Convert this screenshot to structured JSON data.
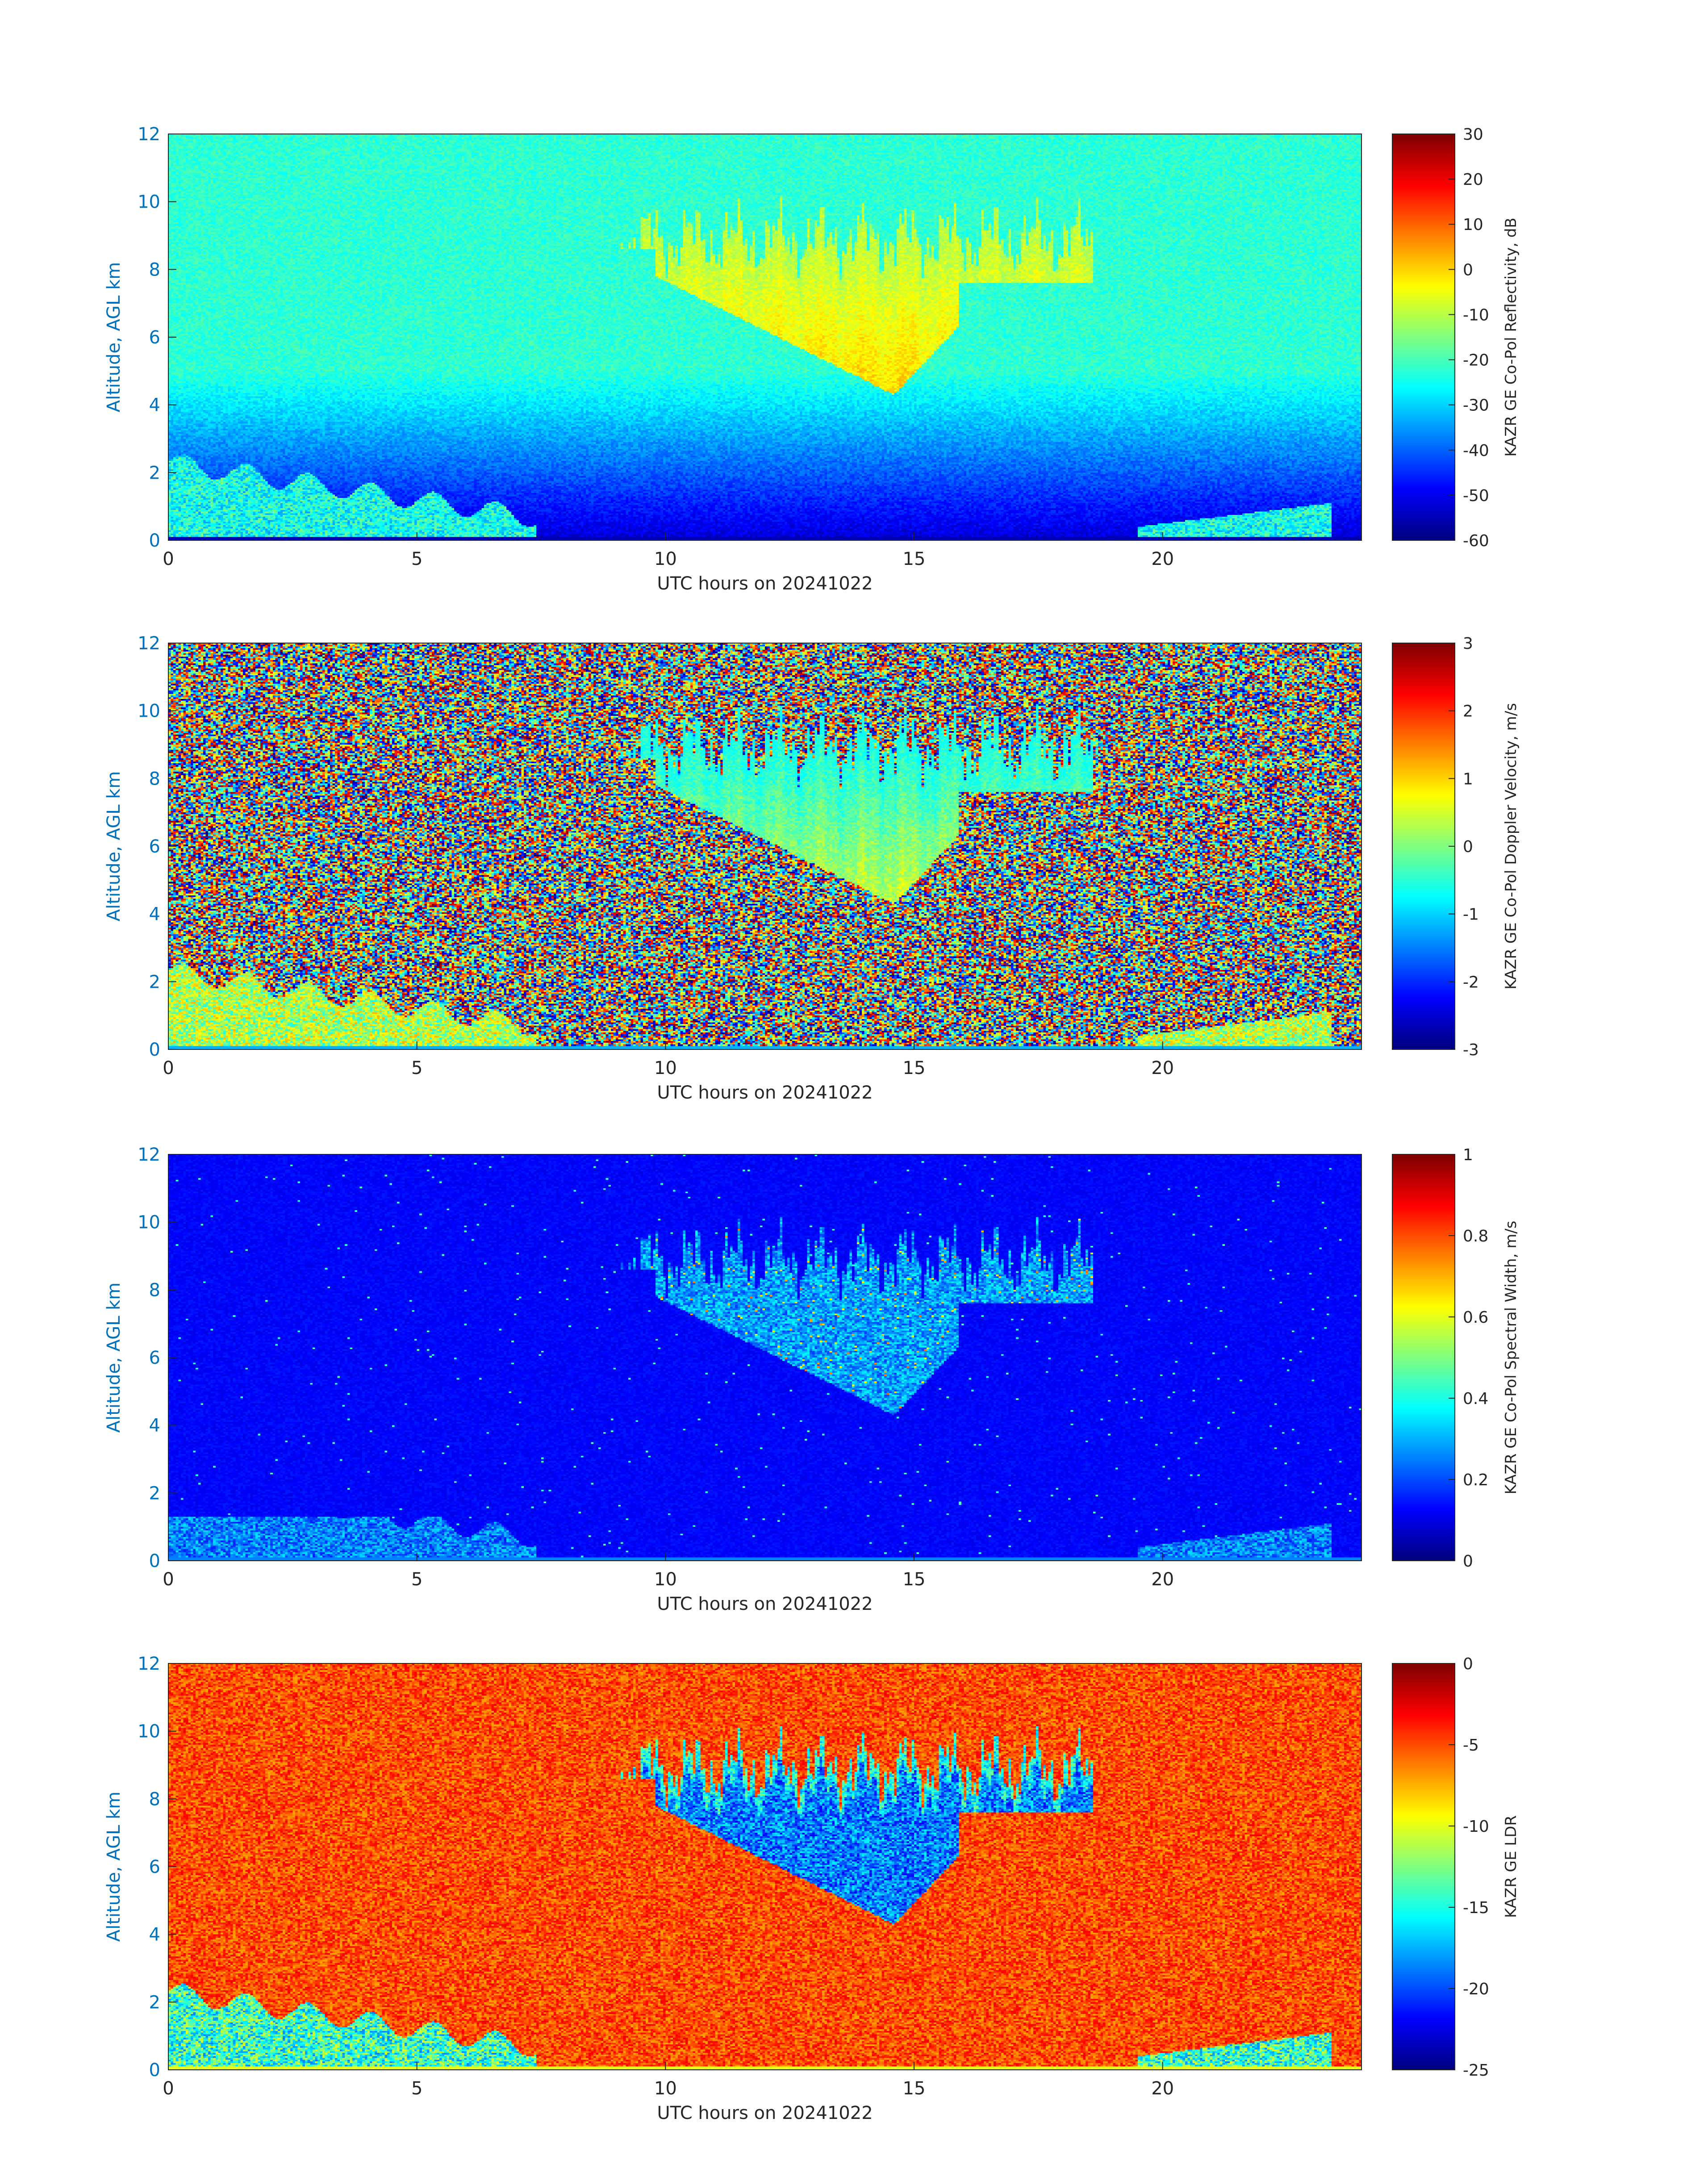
{
  "chart_data": [
    {
      "type": "heatmap",
      "xlabel": "UTC hours on 20241022",
      "ylabel": "Altitude, AGL km",
      "xlim": [
        0,
        24
      ],
      "ylim": [
        0,
        12
      ],
      "xticks": [
        "0",
        "5",
        "10",
        "15",
        "20"
      ],
      "yticks": [
        "0",
        "2",
        "4",
        "6",
        "8",
        "10",
        "12"
      ],
      "colorbar": {
        "label": "KAZR GE Co-Pol Reflectivity, dB",
        "range": [
          -60,
          30
        ],
        "ticks": [
          "30",
          "20",
          "10",
          "0",
          "-10",
          "-20",
          "-30",
          "-40",
          "-50",
          "-60"
        ],
        "colormap": "jet"
      }
    },
    {
      "type": "heatmap",
      "xlabel": "UTC hours on 20241022",
      "ylabel": "Altitude, AGL km",
      "xlim": [
        0,
        24
      ],
      "ylim": [
        0,
        12
      ],
      "xticks": [
        "0",
        "5",
        "10",
        "15",
        "20"
      ],
      "yticks": [
        "0",
        "2",
        "4",
        "6",
        "8",
        "10",
        "12"
      ],
      "colorbar": {
        "label": "KAZR GE Co-Pol Doppler Velocity, m/s",
        "range": [
          -3,
          3
        ],
        "ticks": [
          "3",
          "2",
          "1",
          "0",
          "-1",
          "-2",
          "-3"
        ],
        "colormap": "jet"
      }
    },
    {
      "type": "heatmap",
      "xlabel": "UTC hours on 20241022",
      "ylabel": "Altitude, AGL km",
      "xlim": [
        0,
        24
      ],
      "ylim": [
        0,
        12
      ],
      "xticks": [
        "0",
        "5",
        "10",
        "15",
        "20"
      ],
      "yticks": [
        "0",
        "2",
        "4",
        "6",
        "8",
        "10",
        "12"
      ],
      "colorbar": {
        "label": "KAZR GE Co-Pol Spectral Width, m/s",
        "range": [
          0,
          1
        ],
        "ticks": [
          "1",
          "0.8",
          "0.6",
          "0.4",
          "0.2",
          "0"
        ],
        "colormap": "jet"
      }
    },
    {
      "type": "heatmap",
      "xlabel": "UTC hours on 20241022",
      "ylabel": "Altitude, AGL km",
      "xlim": [
        0,
        24
      ],
      "ylim": [
        0,
        12
      ],
      "xticks": [
        "0",
        "5",
        "10",
        "15",
        "20"
      ],
      "yticks": [
        "0",
        "2",
        "4",
        "6",
        "8",
        "10",
        "12"
      ],
      "colorbar": {
        "label": "KAZR GE LDR",
        "range": [
          -25,
          0
        ],
        "ticks": [
          "0",
          "-5",
          "-10",
          "-15",
          "-20",
          "-25"
        ],
        "colormap": "jet"
      }
    }
  ]
}
